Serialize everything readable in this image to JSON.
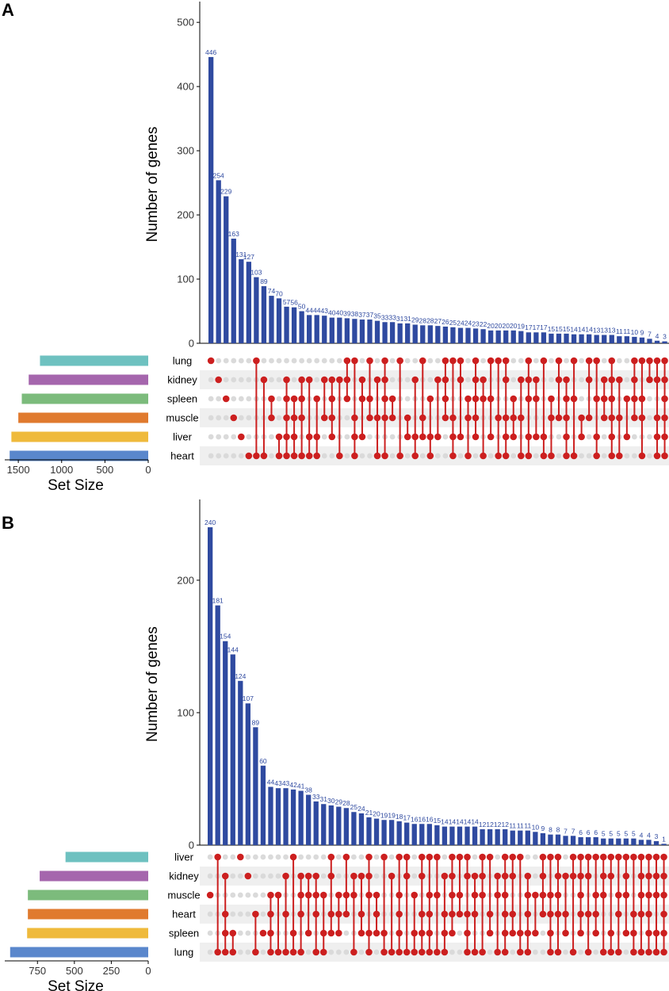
{
  "colors": {
    "bar": "#2f4aa0",
    "bar_label": "#2f4aa0",
    "dot_active": "#cc1f1f",
    "dot_inactive": "#dadada",
    "stripe": "#efefef"
  },
  "chart_data": [
    {
      "panel": "A",
      "type": "bar",
      "title": "",
      "ylabel": "Number of genes",
      "xlabel": "",
      "ylim": [
        0,
        520
      ],
      "yticks": [
        0,
        100,
        200,
        300,
        400,
        500
      ],
      "values": [
        446,
        254,
        229,
        163,
        131,
        127,
        103,
        89,
        74,
        70,
        57,
        56,
        50,
        44,
        44,
        43,
        40,
        40,
        39,
        38,
        37,
        37,
        35,
        33,
        33,
        31,
        31,
        29,
        28,
        28,
        27,
        26,
        25,
        24,
        24,
        23,
        22,
        20,
        20,
        20,
        20,
        19,
        17,
        17,
        17,
        15,
        15,
        15,
        14,
        14,
        14,
        13,
        13,
        13,
        11,
        11,
        10,
        9,
        7,
        4,
        3
      ],
      "value_labels": [
        "446",
        "254",
        "229",
        "163",
        "131",
        "127",
        "103",
        "89",
        "74",
        "70",
        "57",
        "56",
        "50",
        "44",
        "44",
        "43",
        "40",
        "40",
        "39",
        "38",
        "37",
        "37",
        "35",
        "33",
        "33",
        "31",
        "31",
        "29",
        "28",
        "28",
        "27",
        "26",
        "25",
        "24",
        "24",
        "23",
        "22",
        "20",
        "20",
        "20",
        "20",
        "19",
        "17",
        "17",
        "17",
        "15",
        "15",
        "15",
        "14",
        "14",
        "14",
        "13",
        "13",
        "13",
        "11",
        "11",
        "10",
        "9",
        "7",
        "4",
        "3"
      ],
      "sets": [
        "lung",
        "kidney",
        "spleen",
        "muscle",
        "liver",
        "heart"
      ],
      "set_colors": [
        "#6ec1c0",
        "#a566ad",
        "#7cbb7c",
        "#e07a2e",
        "#efba3c",
        "#5a87cc"
      ],
      "set_sizes": [
        1250,
        1380,
        1460,
        1500,
        1580,
        1600
      ],
      "set_size_xlabel": "Set Size",
      "set_size_xlim": [
        0,
        1620
      ],
      "set_size_ticks": [
        1500,
        1000,
        500,
        0
      ],
      "set_size_tick_labels": [
        "1500",
        "1000",
        "500",
        "0"
      ],
      "combinations": [
        [
          0
        ],
        [
          1
        ],
        [
          2
        ],
        [
          3
        ],
        [
          4
        ],
        [
          5
        ],
        [
          0,
          5
        ],
        [
          1,
          5
        ],
        [
          2,
          3
        ],
        [
          4,
          5
        ],
        [
          1,
          2,
          3,
          4,
          5
        ],
        [
          2,
          3,
          4,
          5
        ],
        [
          1,
          2,
          3,
          5
        ],
        [
          1,
          4,
          5
        ],
        [
          2,
          4,
          5
        ],
        [
          1,
          3
        ],
        [
          1,
          2,
          3,
          4
        ],
        [
          1,
          5
        ],
        [
          0,
          1,
          2
        ],
        [
          0,
          3,
          4,
          5
        ],
        [
          1,
          2,
          4
        ],
        [
          0,
          2,
          3
        ],
        [
          1,
          3,
          5
        ],
        [
          0,
          1,
          2,
          3,
          5
        ],
        [
          2,
          3
        ],
        [
          0,
          5
        ],
        [
          3,
          4
        ],
        [
          1,
          4,
          5
        ],
        [
          0,
          3,
          4
        ],
        [
          2,
          4,
          5
        ],
        [
          1,
          4
        ],
        [
          0,
          1,
          2,
          3
        ],
        [
          0,
          3,
          4,
          5
        ],
        [
          0,
          1,
          4
        ],
        [
          2,
          3,
          5
        ],
        [
          0,
          1,
          2,
          3,
          4
        ],
        [
          1,
          2,
          5
        ],
        [
          0,
          2,
          4
        ],
        [
          0,
          3,
          5
        ],
        [
          0,
          1,
          3,
          4,
          5
        ],
        [
          2,
          3,
          4
        ],
        [
          1,
          3,
          5
        ],
        [
          0,
          1,
          2,
          4,
          5
        ],
        [
          1,
          2,
          4
        ],
        [
          0,
          4,
          5
        ],
        [
          2,
          3,
          5
        ],
        [
          0,
          1,
          3
        ],
        [
          1,
          2,
          3,
          4,
          5
        ],
        [
          0,
          2,
          5
        ],
        [
          3,
          4
        ],
        [
          0,
          1,
          3
        ],
        [
          0,
          2,
          4,
          5
        ],
        [
          1,
          2,
          3
        ],
        [
          0,
          1,
          2,
          3,
          4,
          5
        ],
        [
          1,
          3,
          5
        ],
        [
          2,
          4
        ],
        [
          0,
          1,
          2,
          3
        ],
        [
          0,
          2,
          3,
          5
        ],
        [
          0,
          1
        ],
        [
          0,
          1,
          3,
          4,
          5
        ],
        [
          0,
          1,
          2,
          3,
          4,
          5
        ]
      ]
    },
    {
      "panel": "B",
      "type": "bar",
      "title": "",
      "ylabel": "Number of genes",
      "xlabel": "",
      "ylim": [
        0,
        255
      ],
      "yticks": [
        0,
        100,
        200
      ],
      "values": [
        240,
        181,
        154,
        144,
        124,
        107,
        89,
        60,
        44,
        43,
        43,
        42,
        41,
        38,
        33,
        31,
        30,
        29,
        28,
        25,
        24,
        21,
        20,
        19,
        19,
        18,
        17,
        16,
        16,
        16,
        15,
        14,
        14,
        14,
        14,
        14,
        12,
        12,
        12,
        12,
        11,
        11,
        11,
        10,
        9,
        8,
        8,
        7,
        7,
        6,
        6,
        6,
        5,
        5,
        5,
        5,
        5,
        4,
        4,
        3,
        1
      ],
      "value_labels": [
        "240",
        "181",
        "154",
        "144",
        "124",
        "107",
        "89",
        "60",
        "44",
        "43",
        "43",
        "42",
        "41",
        "38",
        "33",
        "31",
        "30",
        "29",
        "28",
        "25",
        "24",
        "21",
        "20",
        "19",
        "19",
        "18",
        "17",
        "16",
        "16",
        "16",
        "15",
        "14",
        "14",
        "14",
        "14",
        "14",
        "12",
        "12",
        "12",
        "12",
        "11",
        "11",
        "11",
        "10",
        "9",
        "8",
        "8",
        "7",
        "7",
        "6",
        "6",
        "6",
        "5",
        "5",
        "5",
        "5",
        "5",
        "4",
        "4",
        "3",
        "1"
      ],
      "sets": [
        "liver",
        "kidney",
        "muscle",
        "heart",
        "spleen",
        "lung"
      ],
      "set_colors": [
        "#6ec1c0",
        "#a566ad",
        "#7cbb7c",
        "#e07a2e",
        "#efba3c",
        "#5a87cc"
      ],
      "set_sizes": [
        560,
        735,
        815,
        815,
        820,
        935
      ],
      "set_size_xlabel": "Set Size",
      "set_size_xlim": [
        0,
        950
      ],
      "set_size_ticks": [
        750,
        500,
        250,
        0
      ],
      "set_size_tick_labels": [
        "750",
        "500",
        "250",
        "0"
      ],
      "combinations": [
        [
          2
        ],
        [
          0,
          5
        ],
        [
          1,
          3,
          4,
          5
        ],
        [
          4,
          5
        ],
        [
          0
        ],
        [
          1
        ],
        [
          3,
          5
        ],
        [
          4
        ],
        [
          2,
          3,
          4,
          5
        ],
        [
          2,
          5
        ],
        [
          1,
          3,
          5
        ],
        [
          0,
          4,
          5
        ],
        [
          1,
          2,
          3,
          5
        ],
        [
          1,
          2,
          4
        ],
        [
          1,
          2,
          3,
          5
        ],
        [
          2,
          4,
          5
        ],
        [
          0,
          1,
          3,
          4
        ],
        [
          2,
          3,
          4
        ],
        [
          0,
          2,
          3
        ],
        [
          1,
          2,
          5
        ],
        [
          1,
          3,
          4
        ],
        [
          0,
          1,
          2,
          4,
          5
        ],
        [
          2,
          3,
          4
        ],
        [
          0,
          4,
          5
        ],
        [
          1,
          5
        ],
        [
          0,
          2,
          3,
          4,
          5
        ],
        [
          0,
          1,
          5
        ],
        [
          2,
          4,
          5
        ],
        [
          0,
          1,
          3,
          4,
          5
        ],
        [
          0,
          2,
          3,
          4,
          5
        ],
        [
          0,
          2,
          5
        ],
        [
          1,
          3,
          4,
          5
        ],
        [
          0,
          1,
          2,
          3,
          4
        ],
        [
          0,
          2,
          3
        ],
        [
          0,
          1,
          3,
          4,
          5
        ],
        [
          1,
          2,
          3,
          5
        ],
        [
          0,
          1,
          2,
          5
        ],
        [
          0,
          3,
          4
        ],
        [
          1,
          2,
          5
        ],
        [
          0,
          1,
          2,
          3,
          4,
          5
        ],
        [
          0,
          1,
          3,
          4
        ],
        [
          0,
          4,
          5
        ],
        [
          1,
          2,
          3,
          4,
          5
        ],
        [
          2,
          4
        ],
        [
          0,
          1,
          2,
          3
        ],
        [
          0,
          2,
          3,
          4,
          5
        ],
        [
          0,
          1,
          2,
          3,
          5
        ],
        [
          1,
          3,
          4
        ],
        [
          0,
          1,
          5
        ],
        [
          0,
          1,
          2,
          3,
          4
        ],
        [
          0,
          1,
          3,
          5
        ],
        [
          0,
          2,
          3,
          4
        ],
        [
          0,
          1,
          2,
          5
        ],
        [
          0,
          1,
          4,
          5
        ],
        [
          0,
          2,
          3,
          5
        ],
        [
          0,
          1,
          2,
          4
        ],
        [
          0,
          3,
          4,
          5
        ],
        [
          0,
          1,
          2,
          3,
          5
        ],
        [
          0,
          1,
          2,
          3,
          4,
          5
        ],
        [
          0,
          1,
          2,
          4,
          5
        ],
        [
          0,
          1,
          2,
          3,
          4,
          5
        ]
      ]
    }
  ]
}
